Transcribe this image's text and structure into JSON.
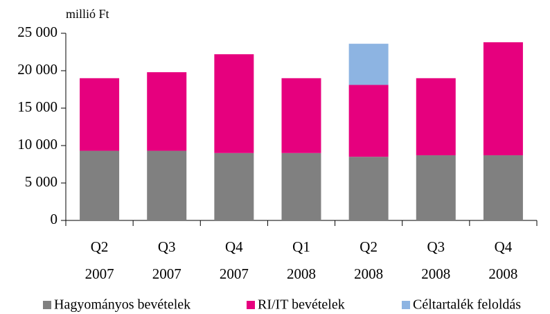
{
  "chart_data": {
    "type": "stacked_bar",
    "y_axis_label": "millió Ft",
    "categories": [
      [
        "Q2",
        "2007"
      ],
      [
        "Q3",
        "2007"
      ],
      [
        "Q4",
        "2007"
      ],
      [
        "Q1",
        "2008"
      ],
      [
        "Q2",
        "2008"
      ],
      [
        "Q3",
        "2008"
      ],
      [
        "Q4",
        "2008"
      ]
    ],
    "series": [
      {
        "name": "Hagyományos bevételek",
        "color": "#808080",
        "values": [
          9300,
          9300,
          9000,
          9000,
          8500,
          8700,
          8700
        ]
      },
      {
        "name": "RI/IT bevételek",
        "color": "#e6007e",
        "values": [
          9700,
          10500,
          13200,
          10000,
          9600,
          10300,
          15100
        ]
      },
      {
        "name": "Céltartalék feloldás",
        "color": "#8db4e2",
        "values": [
          null,
          null,
          null,
          null,
          5500,
          null,
          null
        ]
      }
    ],
    "ylim": [
      0,
      25000
    ],
    "yticks": [
      0,
      {
        "value": 5000,
        "label": "5 000"
      },
      {
        "value": 10000,
        "label": "10 000"
      },
      {
        "value": 15000,
        "label": "15 000"
      },
      {
        "value": 20000,
        "label": "20 000"
      },
      {
        "value": 25000,
        "label": "25 000"
      }
    ],
    "grid": false,
    "legend": "bottom"
  }
}
